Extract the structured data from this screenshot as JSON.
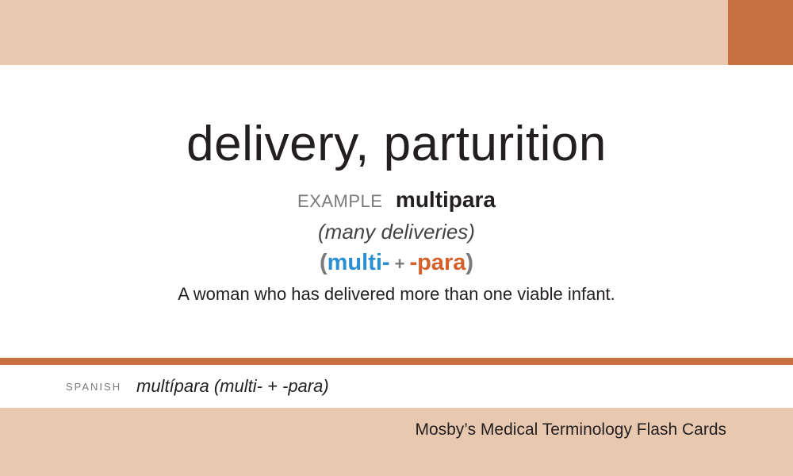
{
  "card": {
    "term": "delivery, parturition",
    "example_label": "EXAMPLE",
    "example_word": "multipara",
    "meaning": "(many deliveries)",
    "parts": {
      "open_paren": "(",
      "prefix": "multi-",
      "plus": "+",
      "suffix": "-para",
      "close_paren": ")"
    },
    "definition": "A woman who has delivered more than one viable infant."
  },
  "spanish": {
    "label": "SPANISH",
    "text": "multípara (multi- + -para)"
  },
  "footer": {
    "title": "Mosby’s Medical Terminology Flash Cards"
  },
  "colors": {
    "band": "#e8c9b0",
    "accent": "#c87040",
    "prefix": "#2a8fd0",
    "suffix": "#d4602a"
  }
}
